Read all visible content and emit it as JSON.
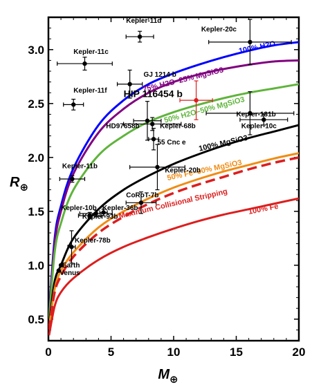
{
  "chart_data": {
    "type": "scatter",
    "title": "",
    "xlabel": {
      "main": "M",
      "sub": "⊕"
    },
    "ylabel": {
      "main": "R",
      "sub": "⊕"
    },
    "xlim": [
      0,
      20
    ],
    "ylim": [
      0.3,
      3.3
    ],
    "xticks": [
      0,
      5,
      10,
      15,
      20
    ],
    "yticks": [
      0.5,
      1.0,
      1.5,
      2.0,
      2.5,
      3.0
    ],
    "xtick_labels": [
      "0",
      "5",
      "10",
      "15",
      "20"
    ],
    "ytick_labels": [
      "0.5",
      "1.0",
      "1.5",
      "2.0",
      "2.5",
      "3.0"
    ],
    "grid": false,
    "series": [
      {
        "name": "100% H2O",
        "color": "#0000ff",
        "dashed": false,
        "x": [
          0.05,
          0.5,
          1,
          2,
          4,
          6,
          8,
          10,
          12,
          14,
          16,
          18,
          20
        ],
        "y": [
          0.55,
          1.25,
          1.55,
          1.9,
          2.3,
          2.53,
          2.68,
          2.78,
          2.86,
          2.93,
          2.99,
          3.04,
          3.07
        ]
      },
      {
        "name": "75% H2O–25% MgSiO3",
        "color": "#800080",
        "dashed": false,
        "x": [
          0.05,
          0.5,
          1,
          2,
          4,
          6,
          8,
          10,
          12,
          14,
          16,
          18,
          20
        ],
        "y": [
          0.53,
          1.2,
          1.5,
          1.85,
          2.23,
          2.45,
          2.6,
          2.7,
          2.77,
          2.82,
          2.86,
          2.89,
          2.9
        ]
      },
      {
        "name": "50% H2O–50% MgSiO3",
        "color": "#5fb43c",
        "dashed": false,
        "x": [
          0.05,
          0.5,
          1,
          2,
          4,
          6,
          8,
          10,
          12,
          14,
          16,
          18,
          20
        ],
        "y": [
          0.5,
          1.12,
          1.39,
          1.7,
          2.02,
          2.2,
          2.33,
          2.42,
          2.49,
          2.55,
          2.6,
          2.64,
          2.68
        ]
      },
      {
        "name": "100% MgSiO3",
        "color": "#000000",
        "dashed": false,
        "x": [
          0.05,
          0.5,
          1,
          2,
          4,
          6,
          8,
          10,
          12,
          14,
          16,
          18,
          20
        ],
        "y": [
          0.45,
          0.85,
          1.0,
          1.25,
          1.52,
          1.7,
          1.83,
          1.94,
          2.03,
          2.11,
          2.18,
          2.24,
          2.3
        ]
      },
      {
        "name": "50% Fe–50% MgSiO3",
        "color": "#f08c14",
        "dashed": false,
        "x": [
          0.05,
          0.5,
          1,
          2,
          4,
          6,
          8,
          10,
          12,
          14,
          16,
          18,
          20
        ],
        "y": [
          0.42,
          0.78,
          0.95,
          1.12,
          1.35,
          1.5,
          1.62,
          1.72,
          1.8,
          1.87,
          1.93,
          1.99,
          2.04
        ]
      },
      {
        "name": "Maximum Collisional Stripping",
        "color": "#dc1e1e",
        "dashed": true,
        "x": [
          0.05,
          0.5,
          1,
          2,
          4,
          6,
          8,
          10,
          12,
          14,
          16,
          18,
          20
        ],
        "y": [
          0.4,
          0.75,
          0.9,
          1.08,
          1.3,
          1.45,
          1.57,
          1.67,
          1.75,
          1.82,
          1.89,
          1.95,
          2.0
        ]
      },
      {
        "name": "100% Fe",
        "color": "#dc1e1e",
        "dashed": false,
        "x": [
          0.05,
          0.5,
          1,
          2,
          4,
          6,
          8,
          10,
          12,
          14,
          16,
          18,
          20
        ],
        "y": [
          0.35,
          0.62,
          0.75,
          0.88,
          1.05,
          1.17,
          1.26,
          1.34,
          1.41,
          1.47,
          1.52,
          1.57,
          1.62
        ]
      }
    ],
    "curve_labels": [
      {
        "text": "100% H2O",
        "x": 16.7,
        "y": 3.0,
        "rotate": -12,
        "color": "#0000ff"
      },
      {
        "text": "75% H2O–25% MgSiO3",
        "x": 10.8,
        "y": 2.7,
        "rotate": -14,
        "color": "#800080"
      },
      {
        "text": "50% H2O–50% MgSiO3",
        "x": 12.5,
        "y": 2.42,
        "rotate": -15,
        "color": "#5fb43c"
      },
      {
        "text": "100% MgSiO3",
        "x": 14.0,
        "y": 2.11,
        "rotate": -13,
        "color": "#000000"
      },
      {
        "text": "50% Fe–50% MgSiO3",
        "x": 12.5,
        "y": 1.86,
        "rotate": -12,
        "color": "#f08c14"
      },
      {
        "text": "Maximum Collisional Stripping",
        "x": 10.0,
        "y": 1.55,
        "rotate": -13,
        "color": "#dc1e1e"
      },
      {
        "text": "100% Fe",
        "x": 17.2,
        "y": 1.5,
        "rotate": -11,
        "color": "#dc1e1e"
      }
    ],
    "points": [
      {
        "name": "Kepler-11d",
        "x": 7.3,
        "y": 3.12,
        "xerr": 1.1,
        "yerr": 0.05,
        "color": "#000000",
        "lx": 6.2,
        "ly": 3.25
      },
      {
        "name": "Kepler-20c",
        "x": 16.1,
        "y": 3.07,
        "xerr": 3.3,
        "yerr": 0.21,
        "color": "#000000",
        "lx": 12.2,
        "ly": 3.17
      },
      {
        "name": "Kepler-11c",
        "x": 2.9,
        "y": 2.87,
        "xerr": 2.2,
        "yerr": 0.06,
        "color": "#000000",
        "lx": 2.0,
        "ly": 2.96
      },
      {
        "name": "GJ 1214 b",
        "x": 6.5,
        "y": 2.68,
        "xerr": 1.0,
        "yerr": 0.13,
        "color": "#000000",
        "lx": 7.6,
        "ly": 2.75
      },
      {
        "name": "Kepler-11f",
        "x": 2.0,
        "y": 2.49,
        "xerr": 0.8,
        "yerr": 0.05,
        "color": "#000000",
        "lx": 2.0,
        "ly": 2.6
      },
      {
        "name": "HIP 116454 b",
        "x": 11.8,
        "y": 2.53,
        "xerr": 1.3,
        "yerr": 0.18,
        "color": "#dc1e1e",
        "lx": 6.0,
        "ly": 2.56
      },
      {
        "name": "HD97658b",
        "x": 7.9,
        "y": 2.34,
        "xerr": 1.1,
        "yerr": 0.18,
        "color": "#000000",
        "lx": 4.6,
        "ly": 2.27
      },
      {
        "name": "Kepler-68b",
        "x": 8.3,
        "y": 2.31,
        "xerr": 2.3,
        "yerr": 0.06,
        "color": "#000000",
        "lx": 8.9,
        "ly": 2.27
      },
      {
        "name": "Kepler-131b",
        "x": 16.1,
        "y": 2.41,
        "xerr": 3.5,
        "yerr": 0.2,
        "color": "#000000",
        "lx": 15.0,
        "ly": 2.38
      },
      {
        "name": "55 Cnc e",
        "x": 8.4,
        "y": 2.17,
        "xerr": 0.4,
        "yerr": 0.1,
        "color": "#000000",
        "lx": 8.7,
        "ly": 2.12
      },
      {
        "name": "Kepler-10c",
        "x": 17.2,
        "y": 2.35,
        "xerr": 1.9,
        "yerr": 0.05,
        "color": "#000000",
        "lx": 15.4,
        "ly": 2.27
      },
      {
        "name": "Kepler-11b",
        "x": 1.9,
        "y": 1.8,
        "xerr": 1.0,
        "yerr": 0.03,
        "color": "#000000",
        "lx": 1.1,
        "ly": 1.9
      },
      {
        "name": "Kepler-20b",
        "x": 8.7,
        "y": 1.91,
        "xerr": 2.2,
        "yerr": 0.21,
        "color": "#000000",
        "lx": 9.3,
        "ly": 1.86
      },
      {
        "name": "CoRoT-7b",
        "x": 7.4,
        "y": 1.58,
        "xerr": 1.2,
        "yerr": 0.1,
        "color": "#000000",
        "lx": 6.2,
        "ly": 1.63
      },
      {
        "name": "Kepler-10b",
        "x": 3.3,
        "y": 1.46,
        "xerr": 0.9,
        "yerr": 0.03,
        "color": "#000000",
        "lx": 1.0,
        "ly": 1.51
      },
      {
        "name": "Kepler-36b",
        "x": 4.4,
        "y": 1.49,
        "xerr": 0.3,
        "yerr": 0.03,
        "color": "#000000",
        "lx": 4.3,
        "ly": 1.51
      },
      {
        "name": "Kepler-93b",
        "x": 3.8,
        "y": 1.48,
        "xerr": 1.3,
        "yerr": 0.03,
        "color": "#000000",
        "lx": 2.7,
        "ly": 1.43
      },
      {
        "name": "Kepler-78b",
        "x": 1.85,
        "y": 1.17,
        "xerr": 0.3,
        "yerr": 0.15,
        "color": "#000000",
        "lx": 2.1,
        "ly": 1.21
      },
      {
        "name": "Earth",
        "x": 1.0,
        "y": 1.0,
        "xerr": 0,
        "yerr": 0,
        "color": "#000000",
        "lx": 1.1,
        "ly": 0.98
      },
      {
        "name": "Venus",
        "x": 0.82,
        "y": 0.95,
        "xerr": 0,
        "yerr": 0,
        "color": "#000000",
        "lx": 0.9,
        "ly": 0.91
      }
    ]
  }
}
